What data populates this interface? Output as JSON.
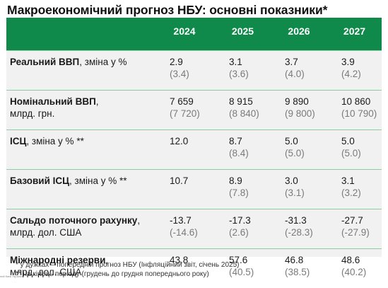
{
  "title": "Макроекономічний прогноз НБУ: основні показники*",
  "columns": [
    "2024",
    "2025",
    "2026",
    "2027"
  ],
  "rows": [
    {
      "label_bold": "Реальний ВВП",
      "label_rest": ", зміна у %",
      "label_line2": "",
      "values": [
        "2.9",
        "3.1",
        "3.7",
        "3.9"
      ],
      "prev": [
        "(3.4)",
        "(3.6)",
        "(4.0)",
        "(4.2)"
      ]
    },
    {
      "label_bold": "Номінальний ВВП",
      "label_rest": ",",
      "label_line2": "млрд. грн.",
      "values": [
        "7 659",
        "8 915",
        "9 890",
        "10 860"
      ],
      "prev": [
        "(7 720)",
        "(8 840)",
        "(9 800)",
        "(10 790)"
      ]
    },
    {
      "label_bold": "ІСЦ",
      "label_rest": ", зміна у % **",
      "label_line2": "",
      "values": [
        "12.0",
        "8.7",
        "5.0",
        "5.0"
      ],
      "prev": [
        "",
        "(8.4)",
        "(5.0)",
        "(5.0)"
      ]
    },
    {
      "label_bold": "Базовий ІСЦ",
      "label_rest": ", зміна у % **",
      "label_line2": "",
      "values": [
        "10.7",
        "8.9",
        "3.0",
        "3.1"
      ],
      "prev": [
        "",
        "(7.8)",
        "(3.1)",
        "(3.2)"
      ]
    },
    {
      "label_bold": "Сальдо поточного рахунку",
      "label_rest": ",",
      "label_line2": "млрд. дол. США",
      "values": [
        "-13.7",
        "-17.3",
        "-31.3",
        "-27.7"
      ],
      "prev": [
        "(-14.6)",
        "(2.6)",
        "(-28.3)",
        "(-27.9)"
      ]
    },
    {
      "label_bold": "Міжнародні резерви",
      "label_rest": ",",
      "label_line2": "млрд. дол. США",
      "values": [
        "43.8",
        "57.6",
        "46.8",
        "48.6"
      ],
      "prev": [
        "",
        "(40.5)",
        "(38.5)",
        "(40.2)"
      ]
    }
  ],
  "footnotes": {
    "fn1": "* у дужках – попередній прогноз НБУ (Інфляційний звіт, січень 2025)",
    "fn2": "** на кінець періоду (грудень до грудня попереднього року)"
  },
  "logo_text": "ний банк України",
  "colors": {
    "header_green": "#0f8a4a",
    "row_bg": "#f1f1f1",
    "separator": "#8fcba6"
  }
}
